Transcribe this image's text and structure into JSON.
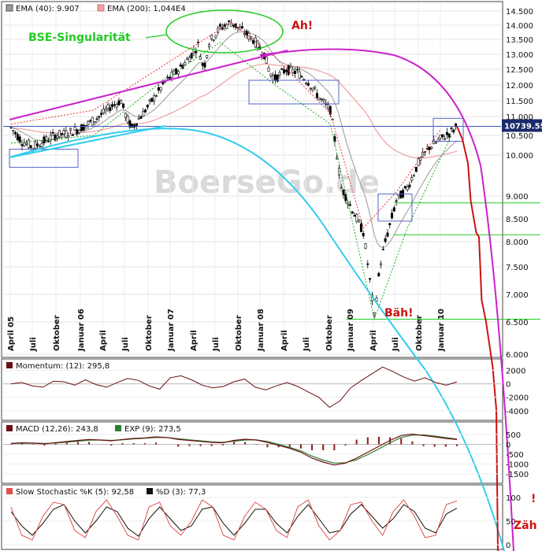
{
  "chart_data": {
    "type": "line",
    "watermark": "BoerseGo.de",
    "price": {
      "y_ticks": [
        "14.500",
        "14.000",
        "13.500",
        "13.000",
        "12.500",
        "12.000",
        "11.500",
        "11.000",
        "10.500",
        "10.000",
        "9.000",
        "8.500",
        "8.000",
        "7.500",
        "7.000",
        "6.500",
        "6.000"
      ],
      "y_tick_values": [
        14500,
        14000,
        13500,
        13000,
        12500,
        12000,
        11500,
        11000,
        10500,
        10000,
        9000,
        8500,
        8000,
        7500,
        7000,
        6500,
        6000
      ],
      "last_price_label": "10739.55",
      "last_price": 10739.55,
      "x_ticks": [
        "April 05",
        "Juli",
        "Oktober",
        "Januar 06",
        "April",
        "Juli",
        "Oktober",
        "Januar 07",
        "April",
        "Juli",
        "Oktober",
        "Januar 08",
        "April",
        "Juli",
        "Oktober",
        "Januar 09",
        "April",
        "Juli",
        "Oktober",
        "Januar 10"
      ],
      "legend": [
        {
          "label": "EMA (40): 9.907",
          "color": "#999999"
        },
        {
          "label": "EMA (200): 1,044E4",
          "color": "#f0a0a0"
        }
      ],
      "annotations": [
        {
          "text": "BSE-Singularität",
          "color": "#22cc22"
        },
        {
          "text": "Ah!",
          "color": "#cc1111"
        },
        {
          "text": "Bäh!",
          "color": "#cc1111"
        },
        {
          "text": "Zäh",
          "color": "#cc1111"
        },
        {
          "text": "!",
          "color": "#cc1111"
        }
      ],
      "close_series": [
        [
          0,
          10700
        ],
        [
          2,
          10350
        ],
        [
          4,
          10200
        ],
        [
          6,
          10350
        ],
        [
          8,
          10500
        ],
        [
          10,
          10550
        ],
        [
          12,
          10650
        ],
        [
          14,
          10800
        ],
        [
          16,
          11000
        ],
        [
          18,
          11300
        ],
        [
          20,
          11500
        ],
        [
          21,
          10950
        ],
        [
          22,
          10700
        ],
        [
          24,
          11100
        ],
        [
          26,
          11600
        ],
        [
          28,
          12100
        ],
        [
          30,
          12400
        ],
        [
          32,
          12800
        ],
        [
          34,
          13300
        ],
        [
          35,
          12500
        ],
        [
          36,
          13400
        ],
        [
          38,
          13900
        ],
        [
          40,
          14100
        ],
        [
          42,
          13800
        ],
        [
          44,
          13500
        ],
        [
          46,
          13000
        ],
        [
          47,
          12400
        ],
        [
          48,
          12200
        ],
        [
          50,
          12500
        ],
        [
          52,
          12400
        ],
        [
          54,
          12100
        ],
        [
          56,
          11600
        ],
        [
          58,
          11200
        ],
        [
          60,
          9200
        ],
        [
          62,
          8700
        ],
        [
          64,
          8200
        ],
        [
          66,
          6600
        ],
        [
          67,
          7500
        ],
        [
          68,
          8000
        ],
        [
          70,
          8900
        ],
        [
          72,
          9200
        ],
        [
          74,
          9800
        ],
        [
          76,
          10200
        ],
        [
          78,
          10400
        ],
        [
          80,
          10600
        ],
        [
          81,
          10739.55
        ]
      ],
      "support_levels": [
        8850,
        8150,
        6550
      ],
      "reference_level": 10739.55,
      "projection_red": [
        [
          81,
          10739.55
        ],
        [
          82,
          10400
        ],
        [
          83,
          9800
        ],
        [
          83.5,
          8900
        ],
        [
          84.5,
          8200
        ],
        [
          85,
          8100
        ],
        [
          85.5,
          6900
        ],
        [
          86.3,
          6500
        ],
        [
          87.5,
          5800
        ]
      ]
    },
    "momentum": {
      "legend": "Momentum: (12): 295,8",
      "y_ticks": [
        "2000",
        "0",
        "-2000",
        "-4000"
      ],
      "y_tick_values": [
        2000,
        0,
        -2000,
        -4000
      ],
      "values": [
        0,
        200,
        -300,
        -500,
        400,
        300,
        -200,
        600,
        -100,
        -500,
        200,
        800,
        500,
        -300,
        -800,
        900,
        1200,
        600,
        -200,
        -600,
        -400,
        300,
        700,
        -500,
        -900,
        -300,
        200,
        -400,
        -1200,
        -2000,
        -3500,
        -2500,
        -600,
        500,
        1500,
        2500,
        1800,
        1000,
        400,
        900,
        200,
        -200,
        295.8
      ],
      "range": [
        -5200,
        3000
      ]
    },
    "macd": {
      "legend_macd": "MACD (12,26): 243,8",
      "legend_exp": "EXP (9): 273,5",
      "y_ticks": [
        "500",
        "0",
        "-500",
        "-1000",
        "-1500"
      ],
      "y_tick_values": [
        500,
        0,
        -500,
        -1000,
        -1500
      ],
      "macd_values": [
        50,
        80,
        60,
        30,
        90,
        150,
        200,
        250,
        220,
        180,
        250,
        300,
        330,
        380,
        350,
        250,
        200,
        150,
        100,
        80,
        200,
        260,
        220,
        100,
        -50,
        -200,
        -400,
        -700,
        -900,
        -1050,
        -950,
        -700,
        -400,
        -100,
        200,
        450,
        520,
        450,
        380,
        300,
        243.8
      ],
      "exp_values": [
        40,
        60,
        65,
        50,
        70,
        110,
        160,
        210,
        220,
        200,
        230,
        280,
        310,
        350,
        350,
        290,
        230,
        180,
        130,
        100,
        160,
        220,
        230,
        150,
        0,
        -150,
        -330,
        -600,
        -800,
        -950,
        -930,
        -780,
        -520,
        -230,
        80,
        350,
        470,
        480,
        420,
        340,
        273.5
      ],
      "range": [
        -1900,
        900
      ]
    },
    "stochastic": {
      "legend_k": "Slow Stochastic %K (5): 92,58",
      "legend_d": "%D (3): 77,3",
      "y_ticks": [
        "100",
        "50",
        "0"
      ],
      "y_tick_values": [
        100,
        50,
        0
      ],
      "k_values": [
        80,
        20,
        10,
        60,
        90,
        85,
        30,
        15,
        70,
        95,
        60,
        20,
        10,
        80,
        90,
        40,
        20,
        50,
        95,
        80,
        20,
        10,
        60,
        90,
        75,
        30,
        15,
        80,
        95,
        40,
        10,
        30,
        85,
        90,
        50,
        20,
        70,
        95,
        60,
        15,
        20,
        85,
        92.58
      ],
      "d_values": [
        70,
        40,
        20,
        45,
        75,
        85,
        50,
        25,
        50,
        80,
        70,
        35,
        18,
        55,
        80,
        55,
        30,
        40,
        75,
        80,
        45,
        20,
        45,
        75,
        75,
        45,
        25,
        60,
        85,
        55,
        25,
        30,
        65,
        85,
        60,
        35,
        55,
        85,
        70,
        35,
        25,
        65,
        77.3
      ],
      "range": [
        0,
        100
      ]
    }
  }
}
